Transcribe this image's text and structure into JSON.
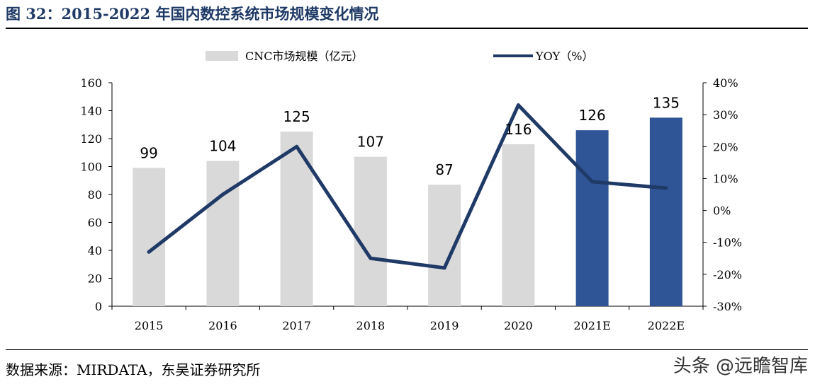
{
  "header": {
    "figure_title": "图 32：2015-2022 年国内数控系统市场规模变化情况"
  },
  "footer": {
    "source": "数据来源：MIRDATA，东吴证券研究所",
    "watermark": "头条 @远瞻智库"
  },
  "chart_data": {
    "type": "bar",
    "categories": [
      "2015",
      "2016",
      "2017",
      "2018",
      "2019",
      "2020",
      "2021E",
      "2022E"
    ],
    "series": [
      {
        "name": "CNC市场规模（亿元）",
        "type": "bar",
        "axis": "left",
        "values": [
          99,
          104,
          125,
          107,
          87,
          116,
          126,
          135
        ],
        "labels": [
          "99",
          "104",
          "125",
          "107",
          "87",
          "116",
          "126",
          "135"
        ],
        "colors": [
          "#d9d9d9",
          "#d9d9d9",
          "#d9d9d9",
          "#d9d9d9",
          "#d9d9d9",
          "#d9d9d9",
          "#2f5597",
          "#2f5597"
        ]
      },
      {
        "name": "YOY（%）",
        "type": "line",
        "axis": "right",
        "values": [
          -13,
          5,
          20,
          -15,
          -18,
          33,
          9,
          7
        ],
        "color": "#1f3a66"
      }
    ],
    "y_left": {
      "min": 0,
      "max": 160,
      "step": 20,
      "ticks": [
        "0",
        "20",
        "40",
        "60",
        "80",
        "100",
        "120",
        "140",
        "160"
      ]
    },
    "y_right": {
      "min": -30,
      "max": 40,
      "step": 10,
      "ticks": [
        "-30%",
        "-20%",
        "-10%",
        "0%",
        "10%",
        "20%",
        "30%",
        "40%"
      ]
    },
    "legend_position": "top-center"
  }
}
